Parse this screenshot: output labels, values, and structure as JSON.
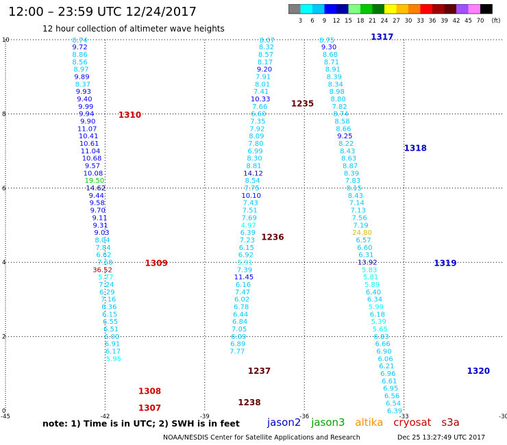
{
  "title": "12:00 – 23:59 UTC 12/24/2017",
  "subtitle": "12 hour collection of altimeter wave heights",
  "note": "note:  1) Time is in UTC;  2) SWH is in feet",
  "credit": "NOAA/NESDIS Center for Satellite Applications and Research",
  "timestamp": "Dec 25 13:27:49 UTC 2017",
  "colorbar": {
    "labels": [
      "3",
      "6",
      "9",
      "12",
      "15",
      "18",
      "21",
      "24",
      "27",
      "30",
      "33",
      "36",
      "39",
      "42",
      "45",
      "70"
    ],
    "unit": "(ft)",
    "colors": [
      "#7f7f7f",
      "#00ffff",
      "#00c8ff",
      "#0000ff",
      "#0000a0",
      "#80ff80",
      "#00c800",
      "#007800",
      "#ffff00",
      "#ffc000",
      "#ff8000",
      "#ff0000",
      "#a00000",
      "#600000",
      "#a050ff",
      "#ff80ff",
      "#000000"
    ]
  },
  "legend": [
    {
      "name": "jason2",
      "color": "#0000c8"
    },
    {
      "name": "jason3",
      "color": "#00a000"
    },
    {
      "name": "altika",
      "color": "#ff9000"
    },
    {
      "name": "cryosat",
      "color": "#d00000"
    },
    {
      "name": "s3a",
      "color": "#a00000"
    }
  ],
  "chart_data": {
    "type": "scatter",
    "xlim": [
      -45,
      -30
    ],
    "ylim": [
      0,
      10
    ],
    "xticks": [
      "-45",
      "-42",
      "-39",
      "-36",
      "-33",
      "-30"
    ],
    "yticks": [
      "0",
      "2",
      "4",
      "6",
      "8",
      "10"
    ],
    "grid": true,
    "passes": [
      {
        "time": "1307",
        "x": -41.0,
        "y": 0.0,
        "color": "#d00000"
      },
      {
        "time": "1308",
        "x": -41.0,
        "y": 0.45,
        "color": "#d00000"
      },
      {
        "time": "1309",
        "x": -40.8,
        "y": 3.9,
        "color": "#d00000"
      },
      {
        "time": "1310",
        "x": -41.6,
        "y": 7.9,
        "color": "#d00000"
      },
      {
        "time": "1235",
        "x": -36.4,
        "y": 8.2,
        "color": "#600000"
      },
      {
        "time": "1236",
        "x": -37.3,
        "y": 4.6,
        "color": "#600000"
      },
      {
        "time": "1237",
        "x": -37.7,
        "y": 1.0,
        "color": "#600000"
      },
      {
        "time": "1238",
        "x": -38.0,
        "y": 0.15,
        "color": "#600000"
      },
      {
        "time": "1317",
        "x": -34.0,
        "y": 10.0,
        "color": "#0000c8"
      },
      {
        "time": "1318",
        "x": -33.0,
        "y": 7.0,
        "color": "#0000c8"
      },
      {
        "time": "1319",
        "x": -32.1,
        "y": 3.9,
        "color": "#0000c8"
      },
      {
        "time": "1320",
        "x": -31.1,
        "y": 1.0,
        "color": "#0000c8"
      }
    ],
    "points": [
      {
        "x": -42.76,
        "y": 9.93,
        "v": 8.74
      },
      {
        "x": -42.76,
        "y": 9.74,
        "v": 9.72
      },
      {
        "x": -42.76,
        "y": 9.54,
        "v": 8.86
      },
      {
        "x": -42.76,
        "y": 9.34,
        "v": 8.56
      },
      {
        "x": -42.72,
        "y": 9.14,
        "v": 8.97
      },
      {
        "x": -42.7,
        "y": 8.94,
        "v": 9.89
      },
      {
        "x": -42.67,
        "y": 8.74,
        "v": 8.37
      },
      {
        "x": -42.65,
        "y": 8.54,
        "v": 9.93
      },
      {
        "x": -42.62,
        "y": 8.34,
        "v": 9.4
      },
      {
        "x": -42.58,
        "y": 8.14,
        "v": 9.99
      },
      {
        "x": -42.56,
        "y": 7.94,
        "v": 9.94
      },
      {
        "x": -42.52,
        "y": 7.74,
        "v": 9.9
      },
      {
        "x": -42.54,
        "y": 7.54,
        "v": 11.07
      },
      {
        "x": -42.5,
        "y": 7.34,
        "v": 10.41
      },
      {
        "x": -42.48,
        "y": 7.14,
        "v": 10.61
      },
      {
        "x": -42.44,
        "y": 6.94,
        "v": 11.04
      },
      {
        "x": -42.4,
        "y": 6.74,
        "v": 10.68
      },
      {
        "x": -42.38,
        "y": 6.54,
        "v": 9.57
      },
      {
        "x": -42.36,
        "y": 6.34,
        "v": 10.08
      },
      {
        "x": -42.32,
        "y": 6.14,
        "v": 19.5
      },
      {
        "x": -42.28,
        "y": 5.94,
        "v": 14.62
      },
      {
        "x": -42.26,
        "y": 5.74,
        "v": 9.44
      },
      {
        "x": -42.24,
        "y": 5.54,
        "v": 9.58
      },
      {
        "x": -42.22,
        "y": 5.34,
        "v": 9.7
      },
      {
        "x": -42.16,
        "y": 5.14,
        "v": 9.11
      },
      {
        "x": -42.14,
        "y": 4.94,
        "v": 9.31
      },
      {
        "x": -42.1,
        "y": 4.74,
        "v": 9.03
      },
      {
        "x": -42.08,
        "y": 4.54,
        "v": 8.04
      },
      {
        "x": -42.06,
        "y": 4.34,
        "v": 7.84
      },
      {
        "x": -42.04,
        "y": 4.14,
        "v": 6.62
      },
      {
        "x": -42.0,
        "y": 3.94,
        "v": 7.68
      },
      {
        "x": -42.08,
        "y": 3.74,
        "v": 36.52
      },
      {
        "x": -41.98,
        "y": 3.54,
        "v": 5.77
      },
      {
        "x": -41.96,
        "y": 3.34,
        "v": 7.24
      },
      {
        "x": -41.94,
        "y": 3.14,
        "v": 6.29
      },
      {
        "x": -41.9,
        "y": 2.94,
        "v": 7.16
      },
      {
        "x": -41.88,
        "y": 2.74,
        "v": 6.36
      },
      {
        "x": -41.86,
        "y": 2.54,
        "v": 6.15
      },
      {
        "x": -41.84,
        "y": 2.34,
        "v": 6.55
      },
      {
        "x": -41.82,
        "y": 2.14,
        "v": 6.51
      },
      {
        "x": -41.8,
        "y": 1.94,
        "v": 6.0
      },
      {
        "x": -41.78,
        "y": 1.74,
        "v": 6.91
      },
      {
        "x": -41.76,
        "y": 1.54,
        "v": 6.17
      },
      {
        "x": -41.74,
        "y": 1.34,
        "v": 5.95
      },
      {
        "x": -37.12,
        "y": 9.93,
        "v": 8.07
      },
      {
        "x": -37.14,
        "y": 9.74,
        "v": 8.32
      },
      {
        "x": -37.16,
        "y": 9.54,
        "v": 8.57
      },
      {
        "x": -37.18,
        "y": 9.34,
        "v": 8.17
      },
      {
        "x": -37.2,
        "y": 9.14,
        "v": 9.2
      },
      {
        "x": -37.24,
        "y": 8.94,
        "v": 7.91
      },
      {
        "x": -37.26,
        "y": 8.74,
        "v": 8.01
      },
      {
        "x": -37.3,
        "y": 8.54,
        "v": 7.41
      },
      {
        "x": -37.32,
        "y": 8.34,
        "v": 10.33
      },
      {
        "x": -37.34,
        "y": 8.14,
        "v": 7.66
      },
      {
        "x": -37.38,
        "y": 7.94,
        "v": 6.6
      },
      {
        "x": -37.4,
        "y": 7.74,
        "v": 7.35
      },
      {
        "x": -37.42,
        "y": 7.54,
        "v": 7.92
      },
      {
        "x": -37.44,
        "y": 7.34,
        "v": 8.09
      },
      {
        "x": -37.46,
        "y": 7.14,
        "v": 7.8
      },
      {
        "x": -37.48,
        "y": 6.94,
        "v": 6.99
      },
      {
        "x": -37.5,
        "y": 6.74,
        "v": 8.3
      },
      {
        "x": -37.52,
        "y": 6.54,
        "v": 8.81
      },
      {
        "x": -37.54,
        "y": 6.34,
        "v": 14.12
      },
      {
        "x": -37.56,
        "y": 6.14,
        "v": 8.54
      },
      {
        "x": -37.58,
        "y": 5.94,
        "v": 7.75
      },
      {
        "x": -37.6,
        "y": 5.74,
        "v": 10.1
      },
      {
        "x": -37.62,
        "y": 5.54,
        "v": 7.43
      },
      {
        "x": -37.64,
        "y": 5.34,
        "v": 7.51
      },
      {
        "x": -37.66,
        "y": 5.14,
        "v": 7.69
      },
      {
        "x": -37.68,
        "y": 4.94,
        "v": 4.97
      },
      {
        "x": -37.7,
        "y": 4.74,
        "v": 6.39
      },
      {
        "x": -37.72,
        "y": 4.54,
        "v": 7.23
      },
      {
        "x": -37.74,
        "y": 4.34,
        "v": 6.15
      },
      {
        "x": -37.76,
        "y": 4.14,
        "v": 6.92
      },
      {
        "x": -37.78,
        "y": 3.94,
        "v": 5.91
      },
      {
        "x": -37.8,
        "y": 3.74,
        "v": 7.39
      },
      {
        "x": -37.82,
        "y": 3.54,
        "v": 11.45
      },
      {
        "x": -37.84,
        "y": 3.34,
        "v": 6.16
      },
      {
        "x": -37.86,
        "y": 3.14,
        "v": 7.47
      },
      {
        "x": -37.88,
        "y": 2.94,
        "v": 6.02
      },
      {
        "x": -37.9,
        "y": 2.74,
        "v": 6.78
      },
      {
        "x": -37.92,
        "y": 2.54,
        "v": 6.44
      },
      {
        "x": -37.94,
        "y": 2.34,
        "v": 6.84
      },
      {
        "x": -37.96,
        "y": 2.14,
        "v": 7.05
      },
      {
        "x": -37.98,
        "y": 1.94,
        "v": 6.09
      },
      {
        "x": -38.0,
        "y": 1.74,
        "v": 6.89
      },
      {
        "x": -38.02,
        "y": 1.54,
        "v": 7.77
      },
      {
        "x": -35.32,
        "y": 9.93,
        "v": 8.75
      },
      {
        "x": -35.26,
        "y": 9.74,
        "v": 9.3
      },
      {
        "x": -35.22,
        "y": 9.54,
        "v": 8.68
      },
      {
        "x": -35.18,
        "y": 9.34,
        "v": 8.71
      },
      {
        "x": -35.14,
        "y": 9.14,
        "v": 8.91
      },
      {
        "x": -35.1,
        "y": 8.94,
        "v": 8.39
      },
      {
        "x": -35.06,
        "y": 8.74,
        "v": 8.34
      },
      {
        "x": -35.02,
        "y": 8.54,
        "v": 8.98
      },
      {
        "x": -34.98,
        "y": 8.34,
        "v": 8.8
      },
      {
        "x": -34.94,
        "y": 8.14,
        "v": 7.82
      },
      {
        "x": -34.9,
        "y": 7.94,
        "v": 8.74
      },
      {
        "x": -34.86,
        "y": 7.74,
        "v": 8.58
      },
      {
        "x": -34.82,
        "y": 7.54,
        "v": 8.66
      },
      {
        "x": -34.78,
        "y": 7.34,
        "v": 9.25
      },
      {
        "x": -34.74,
        "y": 7.14,
        "v": 8.22
      },
      {
        "x": -34.7,
        "y": 6.94,
        "v": 8.43
      },
      {
        "x": -34.66,
        "y": 6.74,
        "v": 8.63
      },
      {
        "x": -34.62,
        "y": 6.54,
        "v": 8.87
      },
      {
        "x": -34.58,
        "y": 6.34,
        "v": 8.39
      },
      {
        "x": -34.54,
        "y": 6.14,
        "v": 7.83
      },
      {
        "x": -34.5,
        "y": 5.94,
        "v": 8.15
      },
      {
        "x": -34.46,
        "y": 5.74,
        "v": 8.43
      },
      {
        "x": -34.42,
        "y": 5.54,
        "v": 7.14
      },
      {
        "x": -34.38,
        "y": 5.34,
        "v": 7.13
      },
      {
        "x": -34.34,
        "y": 5.14,
        "v": 7.56
      },
      {
        "x": -34.3,
        "y": 4.94,
        "v": 7.19
      },
      {
        "x": -34.26,
        "y": 4.74,
        "v": 24.8
      },
      {
        "x": -34.22,
        "y": 4.54,
        "v": 6.57
      },
      {
        "x": -34.18,
        "y": 4.34,
        "v": 6.6
      },
      {
        "x": -34.14,
        "y": 4.14,
        "v": 6.31
      },
      {
        "x": -34.1,
        "y": 3.94,
        "v": 13.92
      },
      {
        "x": -34.04,
        "y": 3.74,
        "v": 5.83
      },
      {
        "x": -34.0,
        "y": 3.54,
        "v": 5.81
      },
      {
        "x": -33.96,
        "y": 3.34,
        "v": 5.89
      },
      {
        "x": -33.92,
        "y": 3.14,
        "v": 6.4
      },
      {
        "x": -33.88,
        "y": 2.94,
        "v": 6.34
      },
      {
        "x": -33.84,
        "y": 2.74,
        "v": 5.99
      },
      {
        "x": -33.8,
        "y": 2.54,
        "v": 6.18
      },
      {
        "x": -33.76,
        "y": 2.34,
        "v": 5.39
      },
      {
        "x": -33.72,
        "y": 2.14,
        "v": 5.65
      },
      {
        "x": -33.68,
        "y": 1.94,
        "v": 6.83
      },
      {
        "x": -33.64,
        "y": 1.74,
        "v": 6.66
      },
      {
        "x": -33.6,
        "y": 1.54,
        "v": 6.9
      },
      {
        "x": -33.56,
        "y": 1.34,
        "v": 6.06
      },
      {
        "x": -33.52,
        "y": 1.14,
        "v": 6.21
      },
      {
        "x": -33.48,
        "y": 0.94,
        "v": 6.96
      },
      {
        "x": -33.44,
        "y": 0.74,
        "v": 6.61
      },
      {
        "x": -33.4,
        "y": 0.54,
        "v": 6.95
      },
      {
        "x": -33.36,
        "y": 0.34,
        "v": 6.56
      },
      {
        "x": -33.32,
        "y": 0.14,
        "v": 6.54
      },
      {
        "x": -33.28,
        "y": -0.06,
        "v": 6.39
      }
    ]
  }
}
